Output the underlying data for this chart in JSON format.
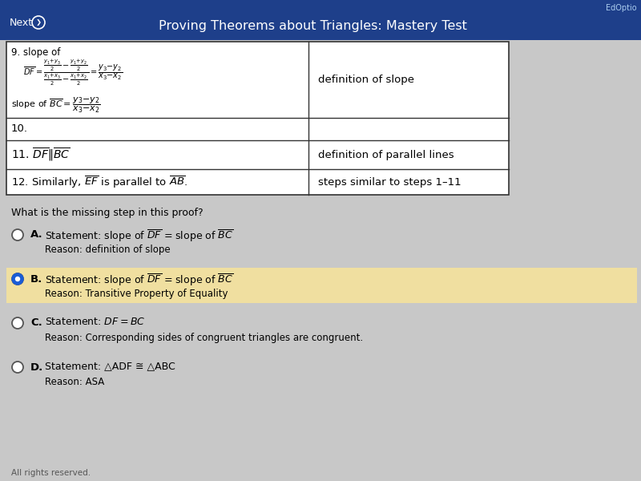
{
  "title_bar_color": "#1e3f8a",
  "title_bar_text": "Proving Theorems about Triangles: Mastery Test",
  "title_bar_text_color": "#ffffff",
  "nav_text": "Next",
  "top_bar_right_text": "EdOptio",
  "bg_color": "#c8c8c8",
  "table_bg": "#ffffff",
  "table_border_color": "#333333",
  "question": "What is the missing step in this proof?",
  "options": [
    {
      "label": "A.",
      "statement": "Statement: slope of $\\overline{DF}$ = slope of $\\overline{BC}$",
      "reason": "Reason: definition of slope",
      "selected": false
    },
    {
      "label": "B.",
      "statement": "Statement: slope of $\\overline{DF}$ = slope of $\\overline{BC}$",
      "reason": "Reason: Transitive Property of Equality",
      "selected": true,
      "highlight_color": "#f0dfa0"
    },
    {
      "label": "C.",
      "statement": "Statement: $DF = BC$",
      "reason": "Reason: Corresponding sides of congruent triangles are congruent.",
      "selected": false
    },
    {
      "label": "D.",
      "statement": "Statement: △ADF ≅ △ABC",
      "reason": "Reason: ASA",
      "selected": false
    }
  ],
  "footer": "All rights reserved.",
  "radio_color_unselected": "#ffffff",
  "radio_color_selected": "#1a5cd6",
  "radio_border_color": "#555555"
}
